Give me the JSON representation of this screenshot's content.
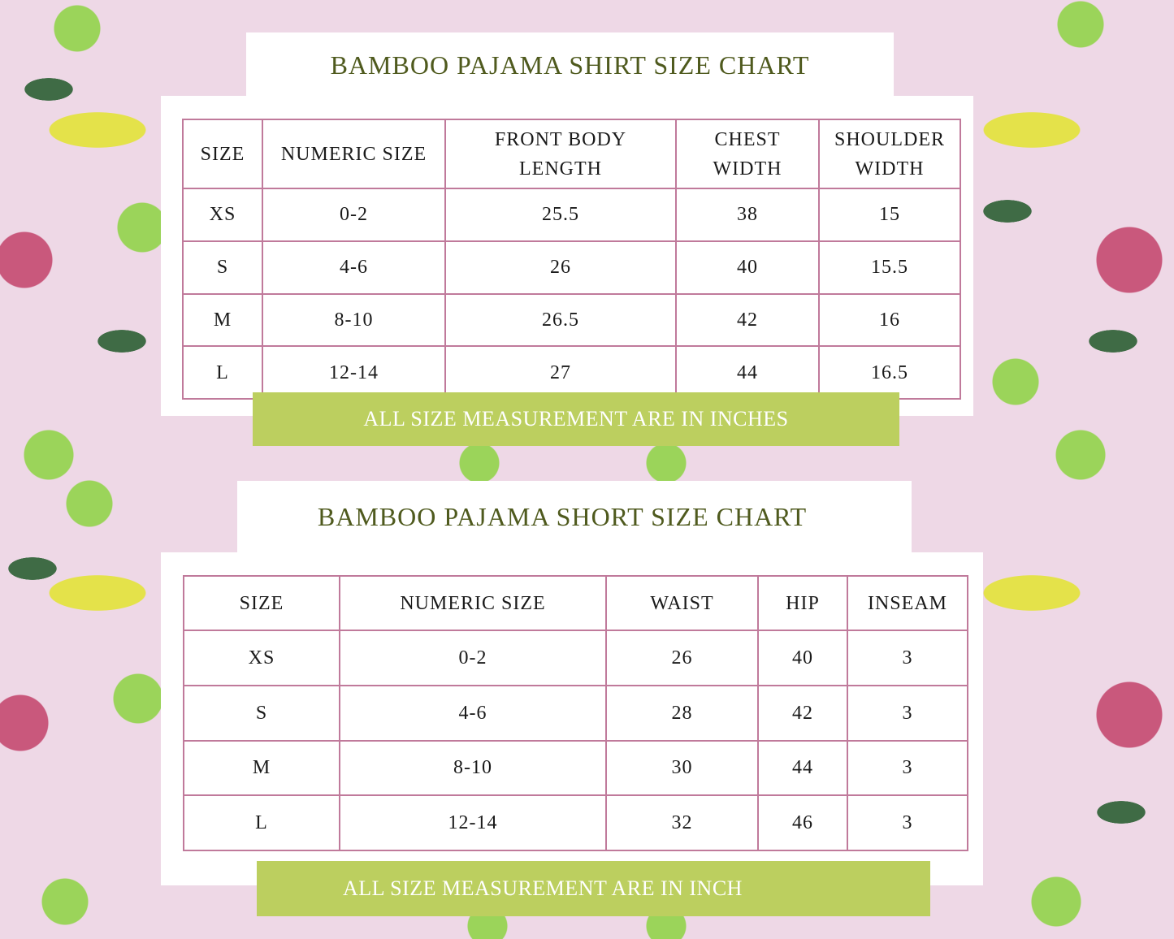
{
  "shirt_chart": {
    "title": "BAMBOO PAJAMA SHIRT SIZE CHART",
    "headers": [
      [
        "SIZE"
      ],
      [
        "NUMERIC SIZE"
      ],
      [
        "FRONT BODY",
        "LENGTH"
      ],
      [
        "CHEST",
        "WIDTH"
      ],
      [
        "SHOULDER",
        "WIDTH"
      ]
    ],
    "rows": [
      [
        "XS",
        "0-2",
        "25.5",
        "38",
        "15"
      ],
      [
        "S",
        "4-6",
        "26",
        "40",
        "15.5"
      ],
      [
        "M",
        "8-10",
        "26.5",
        "42",
        "16"
      ],
      [
        "L",
        "12-14",
        "27",
        "44",
        "16.5"
      ]
    ],
    "note": "ALL SIZE MEASUREMENT ARE IN INCHES"
  },
  "short_chart": {
    "title": "BAMBOO PAJAMA SHORT SIZE CHART",
    "headers": [
      "SIZE",
      "NUMERIC SIZE",
      "WAIST",
      "HIP",
      "INSEAM"
    ],
    "rows": [
      [
        "XS",
        "0-2",
        "26",
        "40",
        "3"
      ],
      [
        "S",
        "4-6",
        "28",
        "42",
        "3"
      ],
      [
        "M",
        "8-10",
        "30",
        "44",
        "3"
      ],
      [
        "L",
        "12-14",
        "32",
        "46",
        "3"
      ]
    ],
    "note": "ALL SIZE MEASUREMENT ARE IN INCH"
  },
  "colors": {
    "title": "#4f5a1e",
    "border": "#c07a9b",
    "banner": "#bccf5f",
    "background": "#eed8e6"
  }
}
